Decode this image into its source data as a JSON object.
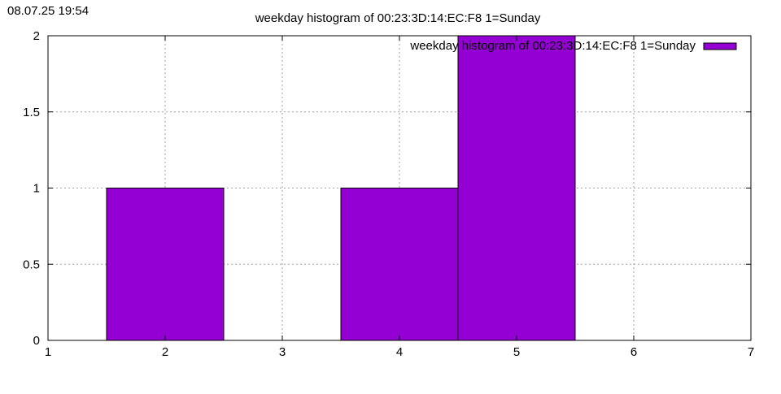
{
  "timestamp": "08.07.25 19:54",
  "chart_data": {
    "type": "bar",
    "title": "weekday histogram of 00:23:3D:14:EC:F8 1=Sunday",
    "xlabel": "",
    "ylabel": "",
    "x": [
      2,
      4,
      5
    ],
    "values": [
      1,
      1,
      2
    ],
    "bar_width": 1,
    "xlim": [
      1,
      7
    ],
    "ylim": [
      0,
      2
    ],
    "xticks": [
      1,
      2,
      3,
      4,
      5,
      6,
      7
    ],
    "yticks": [
      0,
      0.5,
      1,
      1.5,
      2
    ],
    "xtick_labels": [
      "1",
      "2",
      "3",
      "4",
      "5",
      "6",
      "7"
    ],
    "ytick_labels": [
      "0",
      "0.5",
      "1",
      "1.5",
      "2"
    ],
    "grid": true,
    "legend_position": "top-right",
    "series": [
      {
        "name": "weekday histogram of 00:23:3D:14:EC:F8 1=Sunday",
        "color": "#9400d3"
      }
    ]
  }
}
